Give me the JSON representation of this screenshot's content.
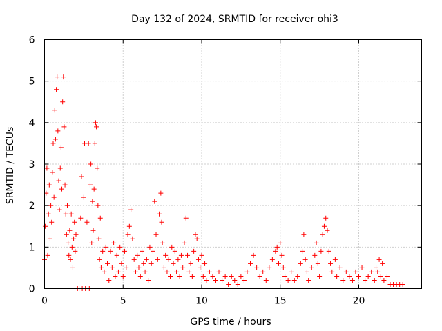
{
  "chart_data": {
    "type": "scatter",
    "title": "Day 132 of 2024, SRMTID for receiver ohi3",
    "xlabel": "GPS time / hours",
    "ylabel": "SRMTID / TECUs",
    "xlim": [
      0,
      24
    ],
    "ylim": [
      0,
      6
    ],
    "xticks": [
      0,
      5,
      10,
      15,
      20
    ],
    "yticks": [
      0,
      1,
      2,
      3,
      4,
      5,
      6
    ],
    "grid": true,
    "marker": "plus",
    "color": "#ff0000",
    "series": [
      {
        "name": "SRMTID",
        "points": [
          [
            0.0,
            0.7
          ],
          [
            0.05,
            1.5
          ],
          [
            0.1,
            2.3
          ],
          [
            0.15,
            2.9
          ],
          [
            0.2,
            0.8
          ],
          [
            0.25,
            1.8
          ],
          [
            0.3,
            2.5
          ],
          [
            0.35,
            1.2
          ],
          [
            0.4,
            2.0
          ],
          [
            0.45,
            1.6
          ],
          [
            0.5,
            2.8
          ],
          [
            0.55,
            3.5
          ],
          [
            0.6,
            2.2
          ],
          [
            0.65,
            4.3
          ],
          [
            0.7,
            3.6
          ],
          [
            0.75,
            4.8
          ],
          [
            0.8,
            5.1
          ],
          [
            0.85,
            3.8
          ],
          [
            0.9,
            2.6
          ],
          [
            0.95,
            1.9
          ],
          [
            1.0,
            2.9
          ],
          [
            1.05,
            3.4
          ],
          [
            1.1,
            2.4
          ],
          [
            1.15,
            4.5
          ],
          [
            1.2,
            5.1
          ],
          [
            1.25,
            3.9
          ],
          [
            1.3,
            2.5
          ],
          [
            1.35,
            1.8
          ],
          [
            1.4,
            1.3
          ],
          [
            1.45,
            2.0
          ],
          [
            1.5,
            1.1
          ],
          [
            1.55,
            0.8
          ],
          [
            1.6,
            1.4
          ],
          [
            1.65,
            0.7
          ],
          [
            1.7,
            1.8
          ],
          [
            1.75,
            1.0
          ],
          [
            1.8,
            0.5
          ],
          [
            1.85,
            1.2
          ],
          [
            1.9,
            1.6
          ],
          [
            1.95,
            0.9
          ],
          [
            2.0,
            1.3
          ],
          [
            2.1,
            0.0
          ],
          [
            2.2,
            0.0
          ],
          [
            2.3,
            1.7
          ],
          [
            2.35,
            2.7
          ],
          [
            2.4,
            0.0
          ],
          [
            2.5,
            2.2
          ],
          [
            2.55,
            3.5
          ],
          [
            2.6,
            0.0
          ],
          [
            2.7,
            1.6
          ],
          [
            2.8,
            3.5
          ],
          [
            2.85,
            0.0
          ],
          [
            2.9,
            2.5
          ],
          [
            2.95,
            3.0
          ],
          [
            3.0,
            1.1
          ],
          [
            3.05,
            2.1
          ],
          [
            3.1,
            1.4
          ],
          [
            3.15,
            2.4
          ],
          [
            3.2,
            3.5
          ],
          [
            3.25,
            4.0
          ],
          [
            3.3,
            3.9
          ],
          [
            3.35,
            2.9
          ],
          [
            3.4,
            2.0
          ],
          [
            3.45,
            1.2
          ],
          [
            3.5,
            0.7
          ],
          [
            3.55,
            1.7
          ],
          [
            3.6,
            0.5
          ],
          [
            3.7,
            0.9
          ],
          [
            3.8,
            0.4
          ],
          [
            3.9,
            1.0
          ],
          [
            4.0,
            0.6
          ],
          [
            4.1,
            0.2
          ],
          [
            4.2,
            0.9
          ],
          [
            4.3,
            0.5
          ],
          [
            4.4,
            1.1
          ],
          [
            4.5,
            0.3
          ],
          [
            4.6,
            0.8
          ],
          [
            4.7,
            0.4
          ],
          [
            4.8,
            1.0
          ],
          [
            4.9,
            0.6
          ],
          [
            5.0,
            0.3
          ],
          [
            5.1,
            0.9
          ],
          [
            5.2,
            0.5
          ],
          [
            5.3,
            1.3
          ],
          [
            5.4,
            1.5
          ],
          [
            5.5,
            1.9
          ],
          [
            5.6,
            1.2
          ],
          [
            5.7,
            0.7
          ],
          [
            5.8,
            0.4
          ],
          [
            5.9,
            0.8
          ],
          [
            6.0,
            0.5
          ],
          [
            6.1,
            0.3
          ],
          [
            6.2,
            0.9
          ],
          [
            6.3,
            0.6
          ],
          [
            6.4,
            0.4
          ],
          [
            6.5,
            0.7
          ],
          [
            6.6,
            0.2
          ],
          [
            6.7,
            1.0
          ],
          [
            6.8,
            0.6
          ],
          [
            6.9,
            0.9
          ],
          [
            7.0,
            2.1
          ],
          [
            7.1,
            1.3
          ],
          [
            7.2,
            0.7
          ],
          [
            7.3,
            1.8
          ],
          [
            7.4,
            2.3
          ],
          [
            7.45,
            1.6
          ],
          [
            7.5,
            1.1
          ],
          [
            7.6,
            0.5
          ],
          [
            7.7,
            0.8
          ],
          [
            7.8,
            0.4
          ],
          [
            7.9,
            0.7
          ],
          [
            8.0,
            0.3
          ],
          [
            8.1,
            1.0
          ],
          [
            8.2,
            0.6
          ],
          [
            8.3,
            0.9
          ],
          [
            8.4,
            0.4
          ],
          [
            8.5,
            0.7
          ],
          [
            8.6,
            0.3
          ],
          [
            8.7,
            0.8
          ],
          [
            8.8,
            0.5
          ],
          [
            8.9,
            1.1
          ],
          [
            9.0,
            1.7
          ],
          [
            9.1,
            0.8
          ],
          [
            9.2,
            0.4
          ],
          [
            9.3,
            0.6
          ],
          [
            9.4,
            0.3
          ],
          [
            9.5,
            0.9
          ],
          [
            9.6,
            1.3
          ],
          [
            9.7,
            1.2
          ],
          [
            9.8,
            0.7
          ],
          [
            9.9,
            0.5
          ],
          [
            10.0,
            0.8
          ],
          [
            10.1,
            0.3
          ],
          [
            10.2,
            0.6
          ],
          [
            10.3,
            0.2
          ],
          [
            10.5,
            0.4
          ],
          [
            10.7,
            0.3
          ],
          [
            10.9,
            0.2
          ],
          [
            11.1,
            0.4
          ],
          [
            11.3,
            0.2
          ],
          [
            11.5,
            0.3
          ],
          [
            11.7,
            0.1
          ],
          [
            11.9,
            0.3
          ],
          [
            12.1,
            0.2
          ],
          [
            12.3,
            0.1
          ],
          [
            12.5,
            0.3
          ],
          [
            12.7,
            0.2
          ],
          [
            12.9,
            0.4
          ],
          [
            13.1,
            0.6
          ],
          [
            13.3,
            0.8
          ],
          [
            13.5,
            0.5
          ],
          [
            13.7,
            0.3
          ],
          [
            13.9,
            0.4
          ],
          [
            14.1,
            0.2
          ],
          [
            14.3,
            0.5
          ],
          [
            14.5,
            0.7
          ],
          [
            14.7,
            0.9
          ],
          [
            14.8,
            1.0
          ],
          [
            14.9,
            0.6
          ],
          [
            15.0,
            1.1
          ],
          [
            15.1,
            0.8
          ],
          [
            15.2,
            0.5
          ],
          [
            15.3,
            0.3
          ],
          [
            15.5,
            0.2
          ],
          [
            15.7,
            0.4
          ],
          [
            15.9,
            0.2
          ],
          [
            16.1,
            0.3
          ],
          [
            16.3,
            0.6
          ],
          [
            16.4,
            0.9
          ],
          [
            16.5,
            1.3
          ],
          [
            16.6,
            0.7
          ],
          [
            16.7,
            0.4
          ],
          [
            16.8,
            0.2
          ],
          [
            17.0,
            0.5
          ],
          [
            17.2,
            0.8
          ],
          [
            17.3,
            1.1
          ],
          [
            17.4,
            0.6
          ],
          [
            17.5,
            0.3
          ],
          [
            17.6,
            0.9
          ],
          [
            17.7,
            1.3
          ],
          [
            17.8,
            1.5
          ],
          [
            17.9,
            1.7
          ],
          [
            18.0,
            1.4
          ],
          [
            18.1,
            0.9
          ],
          [
            18.2,
            0.6
          ],
          [
            18.3,
            0.4
          ],
          [
            18.5,
            0.7
          ],
          [
            18.6,
            0.3
          ],
          [
            18.8,
            0.5
          ],
          [
            19.0,
            0.2
          ],
          [
            19.2,
            0.4
          ],
          [
            19.4,
            0.3
          ],
          [
            19.6,
            0.2
          ],
          [
            19.8,
            0.4
          ],
          [
            20.0,
            0.3
          ],
          [
            20.2,
            0.5
          ],
          [
            20.4,
            0.2
          ],
          [
            20.6,
            0.3
          ],
          [
            20.8,
            0.4
          ],
          [
            21.0,
            0.2
          ],
          [
            21.1,
            0.5
          ],
          [
            21.2,
            0.4
          ],
          [
            21.3,
            0.7
          ],
          [
            21.4,
            0.3
          ],
          [
            21.5,
            0.6
          ],
          [
            21.6,
            0.2
          ],
          [
            21.8,
            0.3
          ],
          [
            22.0,
            0.1
          ],
          [
            22.2,
            0.1
          ],
          [
            22.4,
            0.1
          ],
          [
            22.6,
            0.1
          ],
          [
            22.8,
            0.1
          ]
        ]
      }
    ]
  }
}
